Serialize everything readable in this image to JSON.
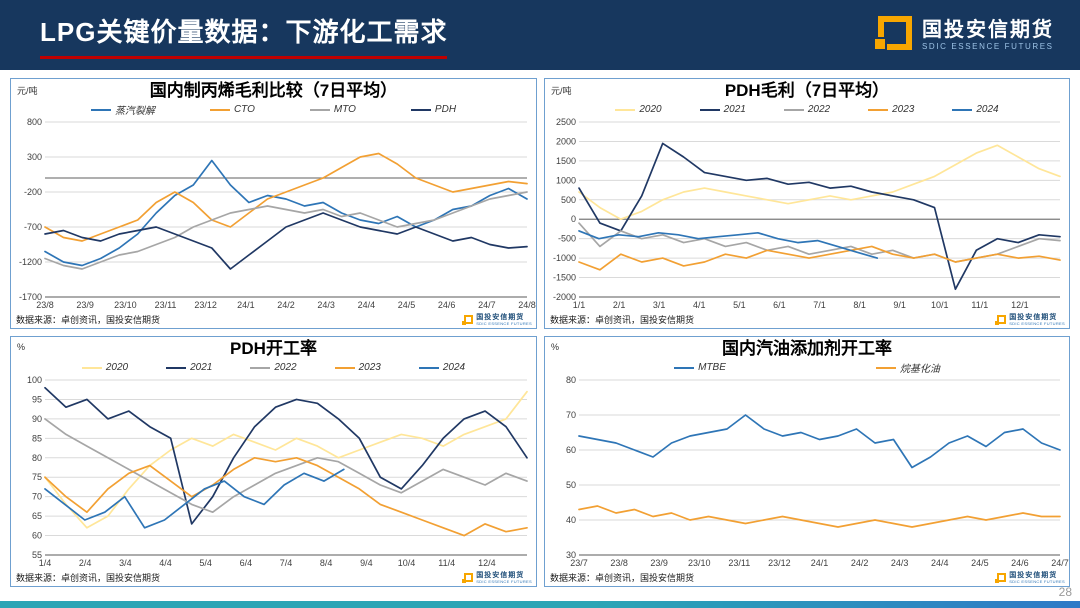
{
  "header": {
    "title": "LPG关键价量数据：下游化工需求",
    "logo_text": "国投安信期货",
    "logo_subtext": "SDIC ESSENCE FUTURES"
  },
  "page": {
    "page_number": "28"
  },
  "source_label": "数据来源：卓创资讯，国投安信期货",
  "mini_logo": {
    "text": "国投安信期货",
    "subtext": "SDIC ESSENCE FUTURES"
  },
  "colors": {
    "header_bg": "#17375E",
    "title_underline": "#C00000",
    "logo_orange": "#F7A600",
    "panel_border": "#6FA0D0",
    "bottom_bar_start": "#2AA5B5",
    "bottom_bar_end": "#2E79C7"
  },
  "chart_data": [
    {
      "type": "line",
      "title": "国内制丙烯毛利比较（7日平均）",
      "unit": "元/吨",
      "ylim": [
        -1700,
        800
      ],
      "yticks": [
        800,
        300,
        -200,
        -700,
        -1200,
        -1700
      ],
      "xlabels": [
        "23/8",
        "23/9",
        "23/10",
        "23/11",
        "23/12",
        "24/1",
        "24/2",
        "24/3",
        "24/4",
        "24/5",
        "24/6",
        "24/7",
        "24/8"
      ],
      "x_div": 12,
      "zero_line": true,
      "grid": true,
      "legend_position": "top",
      "legend_gap": 55,
      "series": [
        {
          "name": "蒸汽裂解",
          "color": "#2E75B6",
          "values": [
            -1050,
            -1200,
            -1250,
            -1150,
            -1000,
            -800,
            -500,
            -250,
            -100,
            250,
            -100,
            -350,
            -250,
            -300,
            -400,
            -350,
            -500,
            -600,
            -650,
            -550,
            -700,
            -600,
            -450,
            -400,
            -250,
            -150,
            -300
          ]
        },
        {
          "name": "CTO",
          "color": "#F2A033",
          "values": [
            -700,
            -850,
            -900,
            -800,
            -700,
            -600,
            -350,
            -200,
            -350,
            -600,
            -700,
            -500,
            -300,
            -200,
            -100,
            0,
            150,
            300,
            350,
            200,
            0,
            -100,
            -200,
            -150,
            -100,
            -50,
            -80
          ]
        },
        {
          "name": "MTO",
          "color": "#A6A6A6",
          "values": [
            -1150,
            -1250,
            -1300,
            -1200,
            -1100,
            -1050,
            -950,
            -850,
            -700,
            -600,
            -500,
            -450,
            -400,
            -450,
            -500,
            -450,
            -550,
            -500,
            -600,
            -700,
            -650,
            -600,
            -500,
            -400,
            -300,
            -250,
            -200
          ]
        },
        {
          "name": "PDH",
          "color": "#203864",
          "values": [
            -800,
            -750,
            -850,
            -900,
            -800,
            -750,
            -700,
            -800,
            -900,
            -1000,
            -1300,
            -1100,
            -900,
            -700,
            -600,
            -500,
            -600,
            -700,
            -750,
            -800,
            -700,
            -800,
            -900,
            -850,
            -950,
            -1000,
            -980
          ]
        }
      ]
    },
    {
      "type": "line",
      "title": "PDH毛利（7日平均）",
      "unit": "元/吨",
      "ylim": [
        -2000,
        2500
      ],
      "yticks": [
        2500,
        2000,
        1500,
        1000,
        500,
        0,
        -500,
        -1000,
        -1500,
        -2000
      ],
      "xlabels": [
        "1/1",
        "2/1",
        "3/1",
        "4/1",
        "5/1",
        "6/1",
        "7/1",
        "8/1",
        "9/1",
        "10/1",
        "11/1",
        "12/1"
      ],
      "x_div": 12,
      "zero_line": true,
      "grid": true,
      "legend_position": "top",
      "legend_gap": 38,
      "series": [
        {
          "name": "2020",
          "color": "#FFE699",
          "values": [
            700,
            300,
            0,
            200,
            500,
            700,
            800,
            700,
            600,
            500,
            400,
            500,
            600,
            500,
            600,
            700,
            900,
            1100,
            1400,
            1700,
            1900,
            1600,
            1300,
            1100
          ]
        },
        {
          "name": "2021",
          "color": "#203864",
          "values": [
            800,
            -100,
            -300,
            600,
            1950,
            1600,
            1200,
            1100,
            1000,
            1050,
            900,
            950,
            800,
            850,
            700,
            600,
            500,
            300,
            -1800,
            -800,
            -500,
            -600,
            -400,
            -450
          ]
        },
        {
          "name": "2022",
          "color": "#A6A6A6",
          "values": [
            -100,
            -700,
            -300,
            -500,
            -400,
            -600,
            -500,
            -700,
            -600,
            -800,
            -700,
            -900,
            -800,
            -700,
            -900,
            -800,
            -1000,
            -900,
            -1100,
            -1000,
            -900,
            -700,
            -500,
            -550
          ]
        },
        {
          "name": "2023",
          "color": "#F2A033",
          "values": [
            -1100,
            -1300,
            -900,
            -1100,
            -1000,
            -1200,
            -1100,
            -900,
            -1000,
            -800,
            -900,
            -1000,
            -900,
            -800,
            -700,
            -900,
            -1000,
            -900,
            -1100,
            -1000,
            -900,
            -1000,
            -950,
            -1050
          ]
        },
        {
          "name": "2024",
          "color": "#2E75B6",
          "x_end": 0.62,
          "values": [
            -300,
            -500,
            -400,
            -450,
            -350,
            -400,
            -500,
            -450,
            -400,
            -350,
            -500,
            -600,
            -550,
            -700,
            -850,
            -1000
          ]
        }
      ]
    },
    {
      "type": "line",
      "title": "PDH开工率",
      "unit": "%",
      "ylim": [
        55,
        100
      ],
      "yticks": [
        100,
        95,
        90,
        85,
        80,
        75,
        70,
        65,
        60,
        55
      ],
      "xlabels": [
        "1/4",
        "2/4",
        "3/4",
        "4/4",
        "5/4",
        "6/4",
        "7/4",
        "8/4",
        "9/4",
        "10/4",
        "11/4",
        "12/4"
      ],
      "x_div": 12,
      "zero_line": false,
      "grid": true,
      "legend_position": "top",
      "legend_gap": 38,
      "series": [
        {
          "name": "2020",
          "color": "#FFE699",
          "values": [
            75,
            68,
            62,
            65,
            72,
            78,
            82,
            85,
            83,
            86,
            84,
            82,
            85,
            83,
            80,
            82,
            84,
            86,
            85,
            83,
            86,
            88,
            90,
            97
          ]
        },
        {
          "name": "2021",
          "color": "#203864",
          "values": [
            98,
            93,
            95,
            90,
            92,
            88,
            85,
            63,
            70,
            80,
            88,
            93,
            95,
            94,
            90,
            85,
            75,
            72,
            78,
            85,
            90,
            92,
            88,
            80
          ]
        },
        {
          "name": "2022",
          "color": "#A6A6A6",
          "values": [
            90,
            86,
            83,
            80,
            77,
            74,
            71,
            68,
            66,
            70,
            73,
            76,
            78,
            80,
            79,
            76,
            73,
            71,
            74,
            77,
            75,
            73,
            76,
            74
          ]
        },
        {
          "name": "2023",
          "color": "#F2A033",
          "values": [
            75,
            70,
            66,
            72,
            76,
            78,
            74,
            70,
            73,
            77,
            80,
            79,
            80,
            78,
            75,
            72,
            68,
            66,
            64,
            62,
            60,
            63,
            61,
            62
          ]
        },
        {
          "name": "2024",
          "color": "#2E75B6",
          "x_end": 0.62,
          "values": [
            72,
            68,
            64,
            66,
            70,
            62,
            64,
            68,
            72,
            74,
            70,
            68,
            73,
            76,
            74,
            77
          ]
        }
      ]
    },
    {
      "type": "line",
      "title": "国内汽油添加剂开工率",
      "unit": "%",
      "ylim": [
        30,
        80
      ],
      "yticks": [
        80,
        70,
        60,
        50,
        40,
        30
      ],
      "xlabels": [
        "23/7",
        "23/8",
        "23/9",
        "23/10",
        "23/11",
        "23/12",
        "24/1",
        "24/2",
        "24/3",
        "24/4",
        "24/5",
        "24/6",
        "24/7"
      ],
      "x_div": 12,
      "zero_line": false,
      "grid": true,
      "legend_position": "top",
      "legend_gap": 150,
      "series": [
        {
          "name": "MTBE",
          "color": "#2E75B6",
          "values": [
            64,
            63,
            62,
            60,
            58,
            62,
            64,
            65,
            66,
            70,
            66,
            64,
            65,
            63,
            64,
            66,
            62,
            63,
            55,
            58,
            62,
            64,
            61,
            65,
            66,
            62,
            60
          ]
        },
        {
          "name": "烷基化油",
          "color": "#F2A033",
          "values": [
            43,
            44,
            42,
            43,
            41,
            42,
            40,
            41,
            40,
            39,
            40,
            41,
            40,
            39,
            38,
            39,
            40,
            39,
            38,
            39,
            40,
            41,
            40,
            41,
            42,
            41,
            41
          ]
        }
      ]
    }
  ]
}
